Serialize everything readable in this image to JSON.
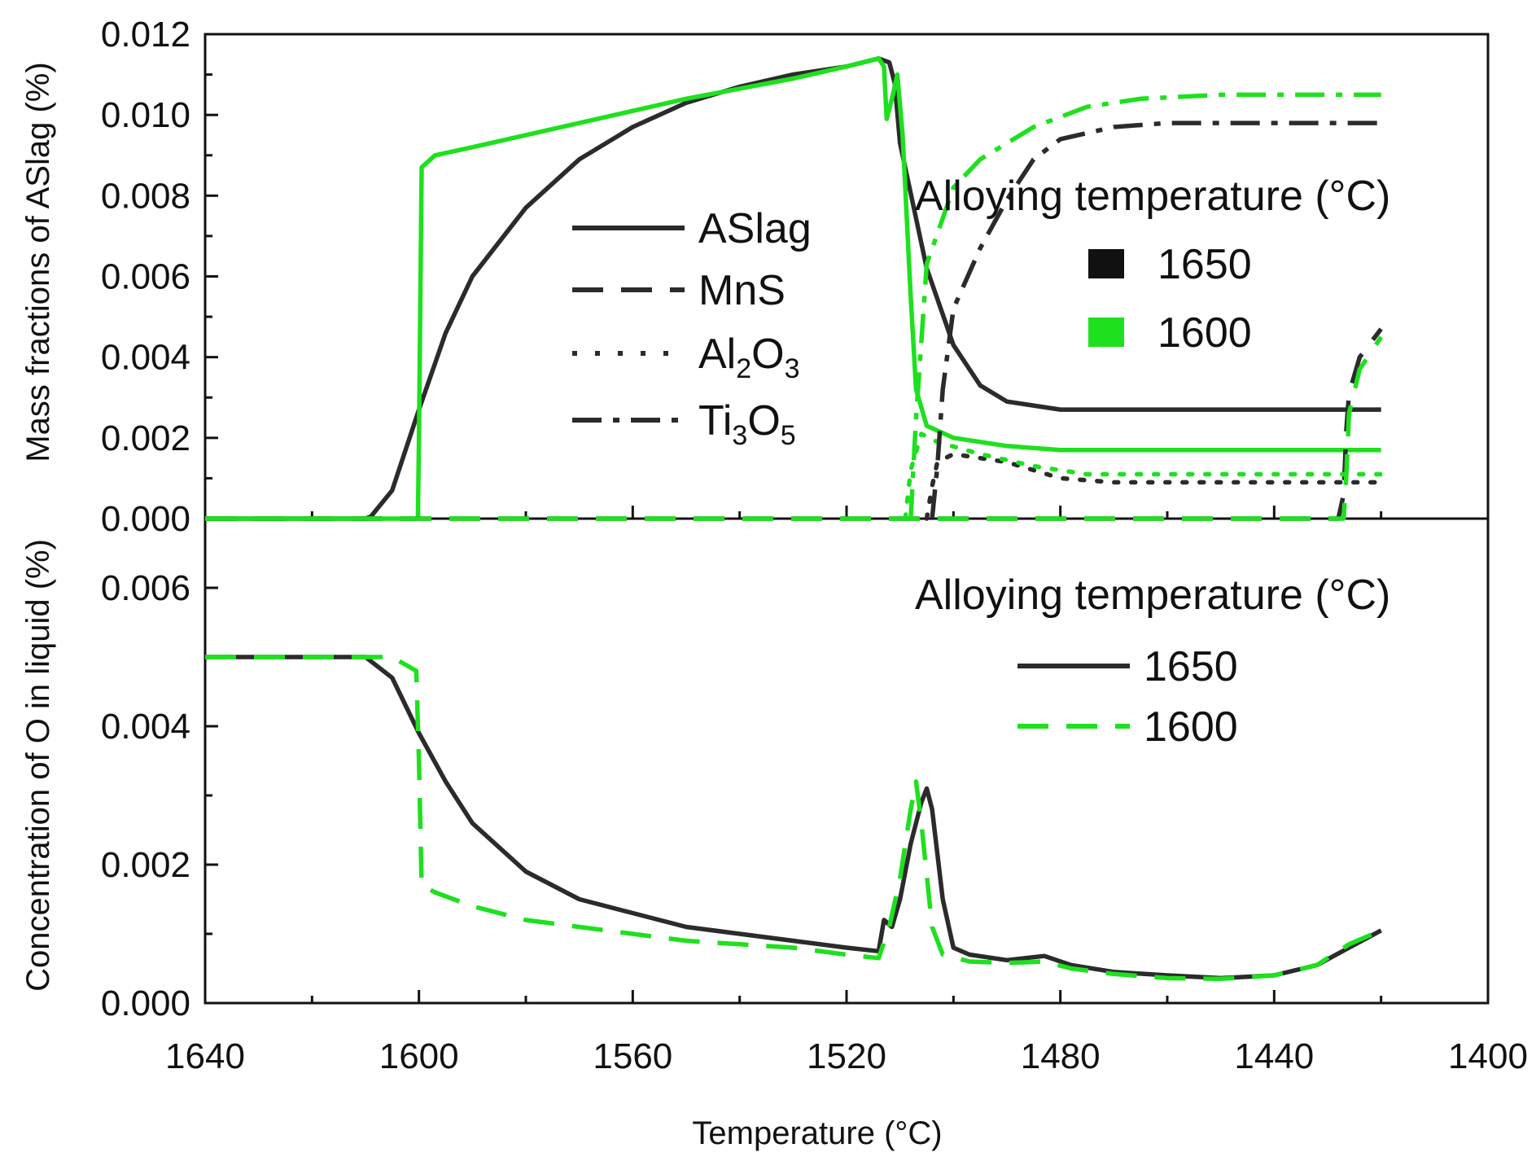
{
  "chart_data": {
    "type": "line",
    "xlabel": "Temperature (°C)",
    "xlim": [
      1640,
      1400
    ],
    "x_ticks": [
      1640,
      1600,
      1560,
      1520,
      1480,
      1440,
      1400
    ],
    "x_tick_labels": [
      "1640",
      "1600",
      "1560",
      "1520",
      "1480",
      "1440",
      "1400"
    ],
    "panels": [
      {
        "id": "top",
        "ylabel": "Mass fractions of ASlag (%)",
        "ylim": [
          0,
          0.012
        ],
        "y_ticks": [
          0,
          0.002,
          0.004,
          0.006,
          0.008,
          0.01,
          0.012
        ],
        "y_tick_labels": [
          "0.000",
          "0.002",
          "0.004",
          "0.006",
          "0.008",
          "0.010",
          "0.012"
        ],
        "species_legend": [
          {
            "label": "ASlag",
            "style": "solid"
          },
          {
            "label": "MnS",
            "style": "dash"
          },
          {
            "label": "Al",
            "sub1": "2",
            "mid": "O",
            "sub2": "3",
            "style": "dot"
          },
          {
            "label": "Ti",
            "sub1": "3",
            "mid": "O",
            "sub2": "5",
            "style": "dashdot"
          }
        ],
        "temperature_legend": {
          "title": "Alloying temperature (°C)",
          "entries": [
            {
              "label": "1650",
              "color": "#2b2b2b"
            },
            {
              "label": "1600",
              "color": "#1ee01e"
            }
          ]
        },
        "series": [
          {
            "name": "ASlag 1650",
            "color": "#2b2b2b",
            "style": "solid",
            "points": [
              [
                1640,
                0
              ],
              [
                1610,
                0
              ],
              [
                1609,
                5e-05
              ],
              [
                1605,
                0.0007
              ],
              [
                1600,
                0.0027
              ],
              [
                1595,
                0.0046
              ],
              [
                1590,
                0.006
              ],
              [
                1580,
                0.0077
              ],
              [
                1570,
                0.0089
              ],
              [
                1560,
                0.0097
              ],
              [
                1550,
                0.0103
              ],
              [
                1540,
                0.0107
              ],
              [
                1530,
                0.011
              ],
              [
                1520,
                0.0112
              ],
              [
                1514,
                0.0114
              ],
              [
                1512,
                0.0113
              ],
              [
                1511,
                0.0108
              ],
              [
                1510,
                0.0093
              ],
              [
                1505,
                0.0062
              ],
              [
                1500,
                0.0043
              ],
              [
                1495,
                0.0033
              ],
              [
                1490,
                0.0029
              ],
              [
                1480,
                0.0027
              ],
              [
                1460,
                0.0027
              ],
              [
                1420,
                0.0027
              ]
            ]
          },
          {
            "name": "ASlag 1600",
            "color": "#1ee01e",
            "style": "solid",
            "points": [
              [
                1640,
                0
              ],
              [
                1600.2,
                0
              ],
              [
                1600,
                0.002
              ],
              [
                1599.5,
                0.0087
              ],
              [
                1597,
                0.009
              ],
              [
                1590,
                0.0092
              ],
              [
                1570,
                0.0098
              ],
              [
                1550,
                0.0104
              ],
              [
                1530,
                0.0109
              ],
              [
                1520,
                0.0112
              ],
              [
                1514,
                0.0114
              ],
              [
                1513,
                0.0112
              ],
              [
                1512.5,
                0.0099
              ],
              [
                1511.5,
                0.0104
              ],
              [
                1510.5,
                0.011
              ],
              [
                1509.5,
                0.0095
              ],
              [
                1508,
                0.0055
              ],
              [
                1507,
                0.0032
              ],
              [
                1505,
                0.0023
              ],
              [
                1500,
                0.002
              ],
              [
                1490,
                0.0018
              ],
              [
                1480,
                0.0017
              ],
              [
                1420,
                0.0017
              ]
            ]
          },
          {
            "name": "MnS 1650",
            "color": "#2b2b2b",
            "style": "dash",
            "points": [
              [
                1640,
                0
              ],
              [
                1428,
                0
              ],
              [
                1427,
                0.0006
              ],
              [
                1426.5,
                0.0022
              ],
              [
                1426,
                0.0031
              ],
              [
                1424,
                0.004
              ],
              [
                1420,
                0.0047
              ]
            ]
          },
          {
            "name": "MnS 1600",
            "color": "#1ee01e",
            "style": "dash",
            "points": [
              [
                1640,
                0
              ],
              [
                1427,
                0
              ],
              [
                1426.5,
                0.0011
              ],
              [
                1426,
                0.0026
              ],
              [
                1424,
                0.0037
              ],
              [
                1420,
                0.0045
              ]
            ]
          },
          {
            "name": "Al2O3 1650",
            "color": "#2b2b2b",
            "style": "dot",
            "points": [
              [
                1505,
                0
              ],
              [
                1504,
                0.0008
              ],
              [
                1503,
                0.0014
              ],
              [
                1500,
                0.0016
              ],
              [
                1490,
                0.0014
              ],
              [
                1480,
                0.001
              ],
              [
                1470,
                0.0009
              ],
              [
                1420,
                0.0009
              ]
            ]
          },
          {
            "name": "Al2O3 1600",
            "color": "#1ee01e",
            "style": "dot",
            "points": [
              [
                1509,
                0
              ],
              [
                1508,
                0.0012
              ],
              [
                1506,
                0.0021
              ],
              [
                1503,
                0.0019
              ],
              [
                1495,
                0.0016
              ],
              [
                1485,
                0.0013
              ],
              [
                1475,
                0.0011
              ],
              [
                1420,
                0.0011
              ]
            ]
          },
          {
            "name": "Ti3O5 1650",
            "color": "#2b2b2b",
            "style": "dashdot",
            "points": [
              [
                1504,
                0
              ],
              [
                1503,
                0.0013
              ],
              [
                1502,
                0.0032
              ],
              [
                1500,
                0.0052
              ],
              [
                1495,
                0.0067
              ],
              [
                1490,
                0.0079
              ],
              [
                1485,
                0.0089
              ],
              [
                1480,
                0.0094
              ],
              [
                1470,
                0.0097
              ],
              [
                1460,
                0.0098
              ],
              [
                1440,
                0.0098
              ],
              [
                1420,
                0.0098
              ]
            ]
          },
          {
            "name": "Ti3O5 1600",
            "color": "#1ee01e",
            "style": "dashdot",
            "points": [
              [
                1508,
                0
              ],
              [
                1507,
                0.0025
              ],
              [
                1505,
                0.0063
              ],
              [
                1500,
                0.0082
              ],
              [
                1495,
                0.0089
              ],
              [
                1485,
                0.0097
              ],
              [
                1475,
                0.0102
              ],
              [
                1465,
                0.0104
              ],
              [
                1450,
                0.0105
              ],
              [
                1420,
                0.0105
              ]
            ]
          }
        ]
      },
      {
        "id": "bottom",
        "ylabel": "Concentration of O in liquid (%)",
        "ylim": [
          0,
          0.007
        ],
        "y_ticks": [
          0,
          0.002,
          0.004,
          0.006
        ],
        "y_tick_labels": [
          "0.000",
          "0.002",
          "0.004",
          "0.006"
        ],
        "legend": {
          "title": "Alloying temperature (°C)",
          "entries": [
            {
              "label": "1650",
              "color": "#2b2b2b",
              "style": "solid"
            },
            {
              "label": "1600",
              "color": "#1ee01e",
              "style": "dash"
            }
          ]
        },
        "series": [
          {
            "name": "1650",
            "color": "#2b2b2b",
            "style": "solid",
            "points": [
              [
                1640,
                0.005
              ],
              [
                1610,
                0.005
              ],
              [
                1605,
                0.0047
              ],
              [
                1600,
                0.0039
              ],
              [
                1595,
                0.0032
              ],
              [
                1590,
                0.0026
              ],
              [
                1580,
                0.0019
              ],
              [
                1570,
                0.0015
              ],
              [
                1560,
                0.0013
              ],
              [
                1550,
                0.0011
              ],
              [
                1540,
                0.001
              ],
              [
                1530,
                0.0009
              ],
              [
                1520,
                0.0008
              ],
              [
                1514,
                0.00075
              ],
              [
                1513,
                0.0012
              ],
              [
                1511.5,
                0.0011
              ],
              [
                1510,
                0.0015
              ],
              [
                1508,
                0.0023
              ],
              [
                1506,
                0.0029
              ],
              [
                1505,
                0.0031
              ],
              [
                1504,
                0.0028
              ],
              [
                1502,
                0.0015
              ],
              [
                1500,
                0.0008
              ],
              [
                1497,
                0.0007
              ],
              [
                1490,
                0.00062
              ],
              [
                1483,
                0.00068
              ],
              [
                1478,
                0.00055
              ],
              [
                1470,
                0.00045
              ],
              [
                1460,
                0.0004
              ],
              [
                1450,
                0.00036
              ],
              [
                1440,
                0.0004
              ],
              [
                1432,
                0.00055
              ],
              [
                1426,
                0.0008
              ],
              [
                1420,
                0.00105
              ]
            ]
          },
          {
            "name": "1600",
            "color": "#1ee01e",
            "style": "dash",
            "points": [
              [
                1640,
                0.005
              ],
              [
                1605,
                0.005
              ],
              [
                1600.5,
                0.0048
              ],
              [
                1600,
                0.0035
              ],
              [
                1599.5,
                0.0017
              ],
              [
                1597,
                0.0016
              ],
              [
                1590,
                0.0014
              ],
              [
                1580,
                0.0012
              ],
              [
                1570,
                0.0011
              ],
              [
                1560,
                0.001
              ],
              [
                1550,
                0.0009
              ],
              [
                1540,
                0.00085
              ],
              [
                1530,
                0.0008
              ],
              [
                1520,
                0.0007
              ],
              [
                1514,
                0.00065
              ],
              [
                1512,
                0.0011
              ],
              [
                1510,
                0.0018
              ],
              [
                1508,
                0.0028
              ],
              [
                1507,
                0.0032
              ],
              [
                1506,
                0.0026
              ],
              [
                1504,
                0.0011
              ],
              [
                1502,
                0.0007
              ],
              [
                1497,
                0.0006
              ],
              [
                1490,
                0.00058
              ],
              [
                1483,
                0.0006
              ],
              [
                1478,
                0.0005
              ],
              [
                1470,
                0.00042
              ],
              [
                1460,
                0.00036
              ],
              [
                1450,
                0.00035
              ],
              [
                1440,
                0.0004
              ],
              [
                1432,
                0.00055
              ],
              [
                1426,
                0.00085
              ],
              [
                1420,
                0.00105
              ]
            ]
          }
        ]
      }
    ]
  }
}
